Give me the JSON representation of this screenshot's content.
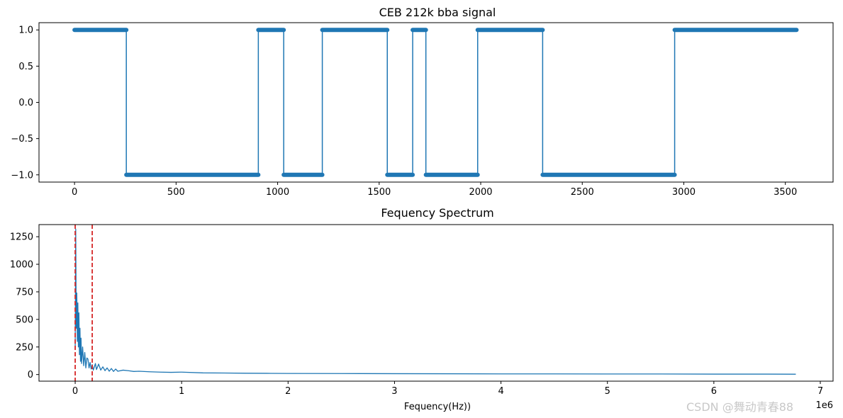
{
  "watermark": "CSDN @舞动青春88",
  "chart_data": [
    {
      "type": "line",
      "title": "CEB 212k bba signal",
      "xlabel": "",
      "ylabel": "",
      "xlim": [
        -175,
        3735
      ],
      "ylim": [
        -1.1,
        1.1
      ],
      "x_ticks": [
        0,
        500,
        1000,
        1500,
        2000,
        2500,
        3000,
        3500
      ],
      "x_tick_labels": [
        "0",
        "500",
        "1000",
        "1500",
        "2000",
        "2500",
        "3000",
        "3500"
      ],
      "y_ticks": [
        -1.0,
        -0.5,
        0.0,
        0.5,
        1.0
      ],
      "y_tick_labels": [
        "−1.0",
        "−0.5",
        "0.0",
        "0.5",
        "1.0"
      ],
      "grid": false,
      "color": "#1f77b4",
      "marker": "dot",
      "segments": [
        {
          "x_start": 0,
          "x_end": 255,
          "value": 1
        },
        {
          "x_start": 255,
          "x_end": 905,
          "value": -1
        },
        {
          "x_start": 905,
          "x_end": 1030,
          "value": 1
        },
        {
          "x_start": 1030,
          "x_end": 1220,
          "value": -1
        },
        {
          "x_start": 1220,
          "x_end": 1540,
          "value": 1
        },
        {
          "x_start": 1540,
          "x_end": 1665,
          "value": -1
        },
        {
          "x_start": 1665,
          "x_end": 1730,
          "value": 1
        },
        {
          "x_start": 1730,
          "x_end": 1985,
          "value": -1
        },
        {
          "x_start": 1985,
          "x_end": 2305,
          "value": 1
        },
        {
          "x_start": 2305,
          "x_end": 2955,
          "value": -1
        },
        {
          "x_start": 2955,
          "x_end": 3555,
          "value": 1
        }
      ]
    },
    {
      "type": "line",
      "title": "Fequency Spectrum",
      "xlabel": "Fequency(Hz))",
      "ylabel": "",
      "x_scale_label": "1e6",
      "xlim": [
        -0.34,
        7.12
      ],
      "ylim": [
        -60,
        1360
      ],
      "x_ticks": [
        0,
        1,
        2,
        3,
        4,
        5,
        6,
        7
      ],
      "x_tick_labels": [
        "0",
        "1",
        "2",
        "3",
        "4",
        "5",
        "6",
        "7"
      ],
      "y_ticks": [
        0,
        250,
        500,
        750,
        1000,
        1250
      ],
      "y_tick_labels": [
        "0",
        "250",
        "500",
        "750",
        "1000",
        "1250"
      ],
      "grid": false,
      "color": "#1f77b4",
      "series": {
        "x": [
          0.0,
          0.005,
          0.01,
          0.015,
          0.02,
          0.025,
          0.03,
          0.035,
          0.04,
          0.045,
          0.05,
          0.055,
          0.06,
          0.07,
          0.08,
          0.09,
          0.1,
          0.11,
          0.12,
          0.13,
          0.14,
          0.15,
          0.16,
          0.17,
          0.18,
          0.19,
          0.2,
          0.22,
          0.24,
          0.26,
          0.28,
          0.3,
          0.32,
          0.34,
          0.36,
          0.38,
          0.4,
          0.45,
          0.5,
          0.55,
          0.6,
          0.7,
          0.8,
          0.9,
          1.0,
          1.2,
          1.4,
          1.6,
          1.8,
          2.0,
          2.5,
          3.0,
          3.5,
          4.0,
          4.5,
          5.0,
          5.5,
          6.0,
          6.5,
          6.77
        ],
        "y": [
          230,
          1320,
          420,
          740,
          300,
          650,
          250,
          560,
          180,
          420,
          120,
          330,
          100,
          250,
          80,
          200,
          60,
          150,
          140,
          60,
          110,
          50,
          90,
          40,
          70,
          100,
          45,
          95,
          40,
          70,
          35,
          60,
          30,
          55,
          28,
          50,
          30,
          40,
          35,
          28,
          30,
          25,
          22,
          20,
          22,
          15,
          14,
          12,
          11,
          10,
          9,
          8,
          7,
          6,
          6,
          5,
          5,
          4,
          4,
          3
        ]
      },
      "vlines": [
        {
          "x": 0.0,
          "color": "#d62728",
          "style": "dashed"
        },
        {
          "x": 0.16,
          "color": "#d62728",
          "style": "dashed"
        }
      ]
    }
  ]
}
